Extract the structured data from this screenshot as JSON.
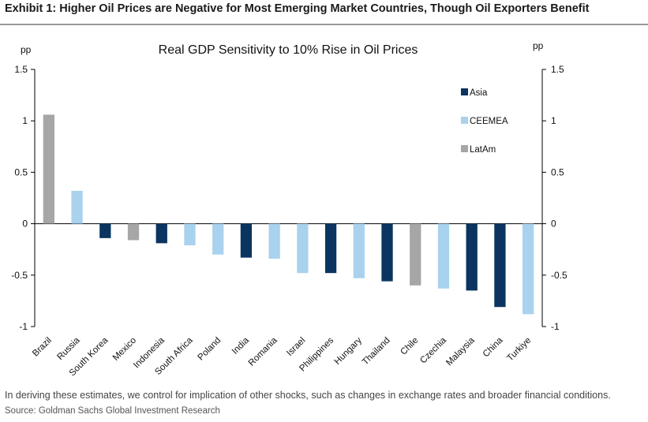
{
  "exhibit": {
    "title": "Exhibit 1: Higher Oil Prices are Negative for Most Emerging Market Countries, Though Oil Exporters Benefit"
  },
  "chart_data": {
    "type": "bar",
    "title": "Real GDP Sensitivity to 10% Rise in Oil Prices",
    "ylabel_left": "pp",
    "ylabel_right": "pp",
    "ylim": [
      -1,
      1.5
    ],
    "yticks": [
      1.5,
      1,
      0.5,
      0,
      -0.5,
      -1
    ],
    "ytick_labels": [
      "1.5",
      "1",
      "0.5",
      "0",
      "-0.5",
      "-1"
    ],
    "colors": {
      "Asia": "#0b3560",
      "CEEMEA": "#a9d2ee",
      "LatAm": "#a6a6a6"
    },
    "legend": {
      "position": "top-right",
      "entries": [
        "Asia",
        "CEEMEA",
        "LatAm"
      ]
    },
    "categories": [
      "Brazil",
      "Russia",
      "South Korea",
      "Mexico",
      "Indonesia",
      "South Africa",
      "Poland",
      "India",
      "Romania",
      "Israel",
      "Philippines",
      "Hungary",
      "Thailand",
      "Chile",
      "Czechia",
      "Malaysia",
      "China",
      "Turkiye"
    ],
    "regions": [
      "LatAm",
      "CEEMEA",
      "Asia",
      "LatAm",
      "Asia",
      "CEEMEA",
      "CEEMEA",
      "Asia",
      "CEEMEA",
      "CEEMEA",
      "Asia",
      "CEEMEA",
      "Asia",
      "LatAm",
      "CEEMEA",
      "Asia",
      "Asia",
      "CEEMEA"
    ],
    "values": [
      1.06,
      0.32,
      -0.14,
      -0.16,
      -0.19,
      -0.21,
      -0.3,
      -0.33,
      -0.34,
      -0.48,
      -0.48,
      -0.53,
      -0.56,
      -0.6,
      -0.63,
      -0.65,
      -0.81,
      -0.88
    ]
  },
  "footnote": "In deriving these estimates, we control for implication of other shocks, such as changes in exchange rates and broader financial conditions.",
  "source": "Source: Goldman Sachs Global Investment Research"
}
